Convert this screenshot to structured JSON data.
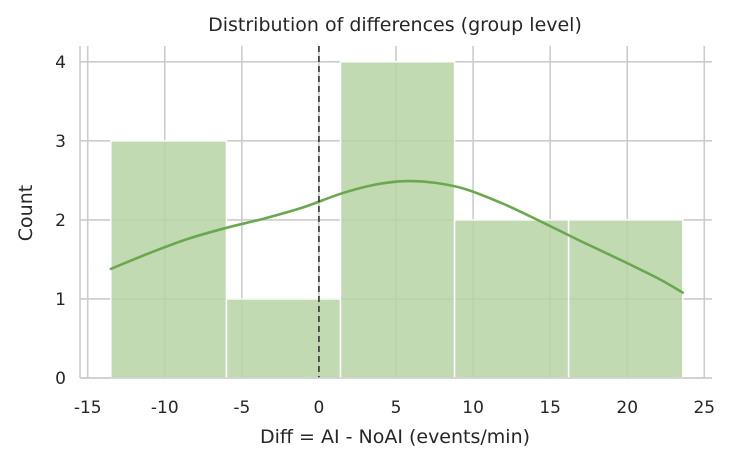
{
  "chart_data": {
    "type": "bar",
    "subtype": "histogram-with-kde",
    "title": "Distribution of differences (group level)",
    "xlabel": "Diff = AI - NoAI (events/min)",
    "ylabel": "Count",
    "xlim": [
      -15.5,
      25.5
    ],
    "ylim": [
      0,
      4.2
    ],
    "xticks": [
      -15,
      -10,
      -5,
      0,
      5,
      10,
      15,
      20,
      25
    ],
    "yticks": [
      0,
      1,
      2,
      3,
      4
    ],
    "grid": true,
    "bins": [
      {
        "x0": -13.5,
        "x1": -6.0,
        "count": 3
      },
      {
        "x0": -6.0,
        "x1": 1.4,
        "count": 1
      },
      {
        "x0": 1.4,
        "x1": 8.8,
        "count": 4
      },
      {
        "x0": 8.8,
        "x1": 16.2,
        "count": 2
      },
      {
        "x0": 16.2,
        "x1": 23.6,
        "count": 2
      }
    ],
    "kde": {
      "x": [
        -13.5,
        -11,
        -8.5,
        -6,
        -3.5,
        -1,
        1.4,
        3.5,
        5.5,
        7.5,
        9.5,
        12,
        14.5,
        17,
        19.5,
        22,
        23.6
      ],
      "y": [
        1.38,
        1.58,
        1.76,
        1.9,
        2.02,
        2.16,
        2.33,
        2.44,
        2.49,
        2.47,
        2.39,
        2.2,
        1.97,
        1.73,
        1.5,
        1.26,
        1.08
      ]
    },
    "reference_line_x": 0,
    "colors": {
      "bar_fill": "#b6d4a5",
      "bar_edge": "#ffffff",
      "kde_line": "#6aa84f",
      "reference_line": "#333333",
      "grid": "#cccccc",
      "spine": "#cccccc"
    }
  }
}
